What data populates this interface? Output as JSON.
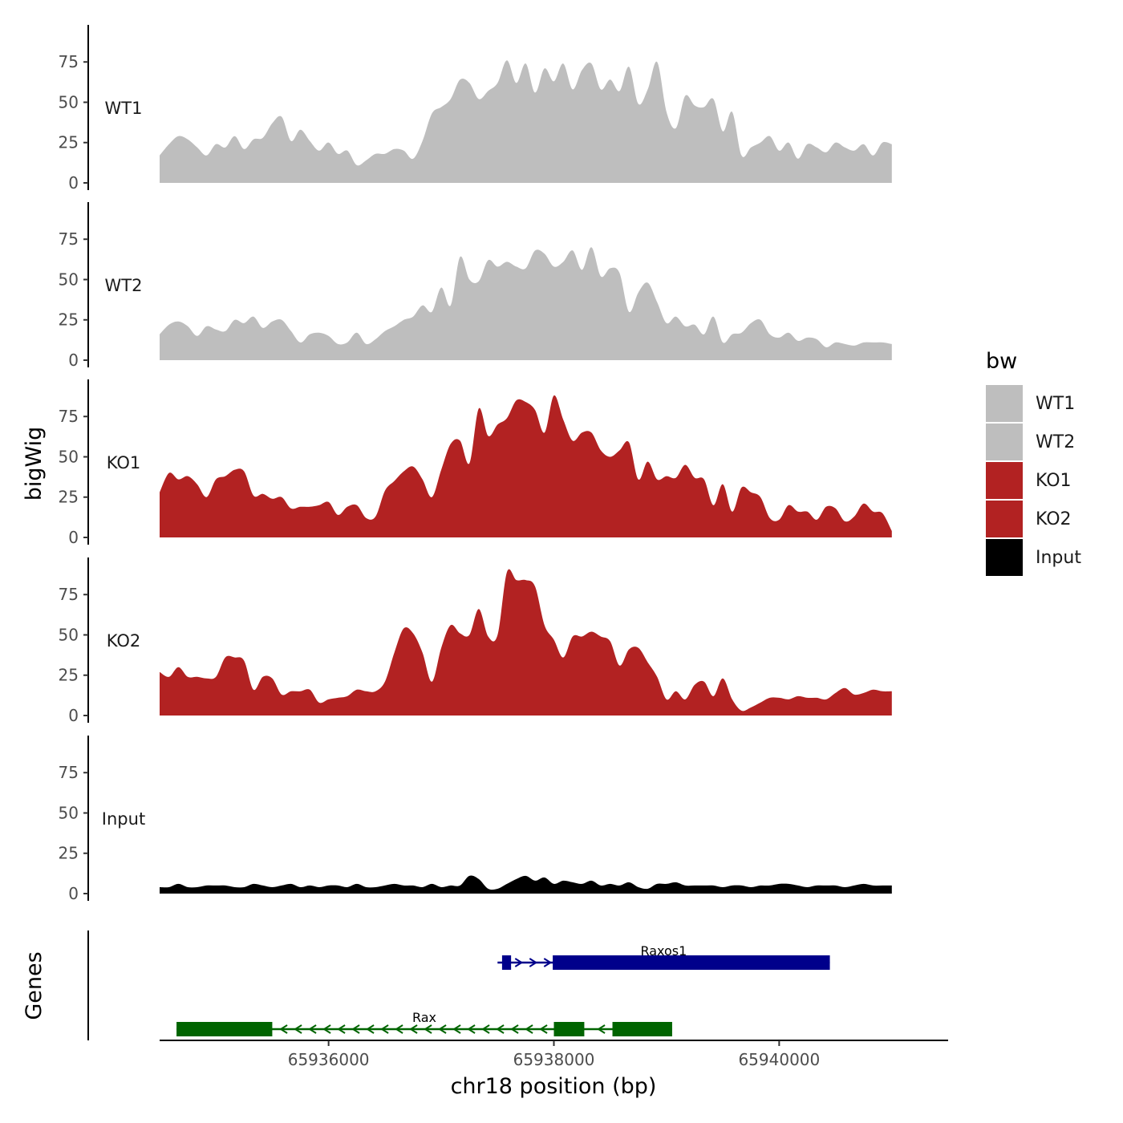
{
  "chart_data": {
    "type": "area",
    "chromosome": "chr18",
    "xlabel": "chr18 position (bp)",
    "ylabel": "bigWig",
    "genes_label": "Genes",
    "xlim": [
      65934500,
      65941500
    ],
    "x_ticks": [
      65936000,
      65938000,
      65940000
    ],
    "x_tick_labels": [
      "65936000",
      "65938000",
      "65940000"
    ],
    "ylim": [
      0,
      98
    ],
    "y_ticks": [
      0,
      25,
      50,
      75
    ],
    "y_tick_labels": [
      "0",
      "25",
      "50",
      "75"
    ],
    "data_range": [
      65934500,
      65941000
    ],
    "legend": {
      "title": "bw",
      "position": "right",
      "entries": [
        {
          "name": "WT1",
          "color": "#bebebe"
        },
        {
          "name": "WT2",
          "color": "#bebebe"
        },
        {
          "name": "KO1",
          "color": "#b22222"
        },
        {
          "name": "KO2",
          "color": "#b22222"
        },
        {
          "name": "Input",
          "color": "#000000"
        }
      ]
    },
    "series": [
      {
        "name": "WT1",
        "color": "#bebebe",
        "values": [
          17,
          24,
          29,
          27,
          22,
          17,
          24,
          22,
          29,
          21,
          27,
          28,
          37,
          41,
          26,
          33,
          26,
          20,
          25,
          18,
          20,
          11,
          14,
          18,
          18,
          21,
          20,
          15,
          26,
          43,
          47,
          52,
          64,
          62,
          52,
          57,
          62,
          76,
          62,
          74,
          56,
          71,
          63,
          74,
          58,
          70,
          74,
          58,
          64,
          57,
          72,
          49,
          58,
          75,
          44,
          34,
          54,
          48,
          47,
          52,
          32,
          44,
          17,
          22,
          25,
          29,
          20,
          25,
          15,
          24,
          22,
          19,
          25,
          22,
          20,
          24,
          17,
          25,
          24
        ]
      },
      {
        "name": "WT2",
        "color": "#bebebe",
        "values": [
          16,
          22,
          24,
          21,
          15,
          21,
          19,
          18,
          25,
          23,
          27,
          20,
          24,
          25,
          18,
          11,
          16,
          17,
          15,
          10,
          11,
          17,
          10,
          13,
          18,
          21,
          25,
          27,
          34,
          30,
          45,
          34,
          64,
          50,
          49,
          62,
          58,
          61,
          58,
          57,
          68,
          66,
          58,
          61,
          68,
          56,
          70,
          52,
          57,
          54,
          30,
          42,
          48,
          36,
          23,
          27,
          21,
          22,
          16,
          27,
          11,
          16,
          17,
          23,
          25,
          16,
          14,
          17,
          12,
          14,
          13,
          8,
          11,
          10,
          9,
          11,
          11,
          11,
          10
        ]
      },
      {
        "name": "KO1",
        "color": "#b22222",
        "values": [
          28,
          40,
          36,
          38,
          33,
          25,
          36,
          38,
          42,
          41,
          26,
          27,
          24,
          25,
          18,
          19,
          19,
          20,
          22,
          14,
          19,
          20,
          12,
          13,
          29,
          35,
          41,
          44,
          36,
          25,
          42,
          58,
          60,
          46,
          80,
          63,
          70,
          74,
          85,
          84,
          79,
          65,
          88,
          73,
          60,
          65,
          65,
          54,
          50,
          54,
          59,
          36,
          47,
          36,
          38,
          37,
          45,
          37,
          36,
          20,
          33,
          16,
          31,
          28,
          25,
          12,
          11,
          20,
          16,
          16,
          11,
          19,
          18,
          10,
          13,
          21,
          16,
          15,
          4
        ]
      },
      {
        "name": "KO2",
        "color": "#b22222",
        "values": [
          27,
          24,
          30,
          24,
          24,
          23,
          24,
          36,
          36,
          34,
          16,
          24,
          23,
          13,
          15,
          15,
          16,
          8,
          10,
          11,
          12,
          16,
          15,
          15,
          21,
          39,
          54,
          51,
          39,
          21,
          42,
          56,
          51,
          50,
          66,
          49,
          50,
          89,
          84,
          84,
          80,
          56,
          47,
          36,
          49,
          49,
          52,
          49,
          46,
          31,
          41,
          42,
          33,
          24,
          10,
          15,
          10,
          19,
          21,
          12,
          23,
          10,
          3,
          5,
          8,
          11,
          11,
          10,
          12,
          11,
          11,
          10,
          14,
          17,
          13,
          14,
          16,
          15,
          15
        ]
      },
      {
        "name": "Input",
        "color": "#000000",
        "values": [
          4,
          4,
          6,
          4,
          4,
          5,
          5,
          5,
          4,
          4,
          6,
          5,
          4,
          5,
          6,
          4,
          5,
          4,
          5,
          5,
          4,
          6,
          4,
          4,
          5,
          6,
          5,
          5,
          4,
          6,
          4,
          5,
          5,
          11,
          9,
          3,
          3,
          6,
          9,
          11,
          8,
          10,
          6,
          8,
          7,
          6,
          8,
          5,
          6,
          5,
          7,
          4,
          3,
          6,
          6,
          7,
          5,
          5,
          5,
          5,
          4,
          5,
          5,
          4,
          5,
          5,
          6,
          6,
          5,
          4,
          5,
          5,
          5,
          4,
          5,
          6,
          5,
          5,
          5
        ]
      }
    ],
    "genes": [
      {
        "name": "Raxos1",
        "color": "#00008b",
        "strand": "+",
        "start": 65937500,
        "end": 65940450,
        "exons": [
          [
            65937540,
            65937620
          ],
          [
            65937990,
            65940450
          ]
        ]
      },
      {
        "name": "Rax",
        "color": "#006400",
        "strand": "-",
        "start": 65934650,
        "end": 65939050,
        "exons": [
          [
            65934650,
            65935500
          ],
          [
            65938000,
            65938270
          ],
          [
            65938520,
            65939050
          ]
        ]
      }
    ]
  }
}
